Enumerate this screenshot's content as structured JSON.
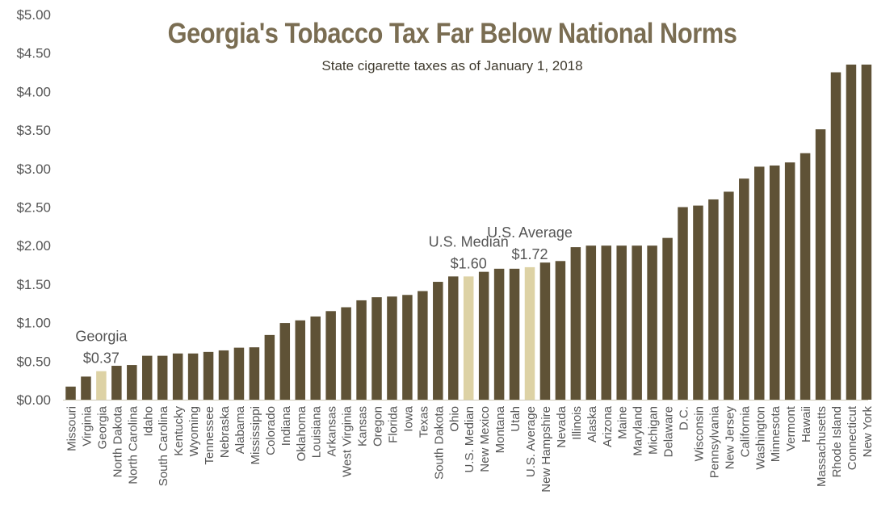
{
  "chart_data": {
    "type": "bar",
    "title": "Georgia's Tobacco Tax Far Below National Norms",
    "subtitle": "State cigarette taxes as of January 1, 2018",
    "xlabel": "",
    "ylabel": "",
    "ylim": [
      0,
      5
    ],
    "y_ticks": [
      "$0.00",
      "$0.50",
      "$1.00",
      "$1.50",
      "$2.00",
      "$2.50",
      "$3.00",
      "$3.50",
      "$4.00",
      "$4.50",
      "$5.00"
    ],
    "grid": false,
    "legend": "none",
    "colors": {
      "bar": "#5f5236",
      "highlight": "#ddd2a5",
      "title": "#7a6d52",
      "axis_text": "#555555",
      "annotation": "#555555"
    },
    "categories": [
      "Missouri",
      "Virginia",
      "Georgia",
      "North Dakota",
      "North Carolina",
      "Idaho",
      "South Carolina",
      "Kentucky",
      "Wyoming",
      "Tennessee",
      "Nebraska",
      "Alabama",
      "Mississippi",
      "Colorado",
      "Indiana",
      "Oklahoma",
      "Louisiana",
      "Arkansas",
      "West Virginia",
      "Kansas",
      "Oregon",
      "Florida",
      "Iowa",
      "Texas",
      "South Dakota",
      "Ohio",
      "U.S. Median",
      "New Mexico",
      "Montana",
      "Utah",
      "U.S. Average",
      "New Hampshire",
      "Nevada",
      "Illinois",
      "Alaska",
      "Arizona",
      "Maine",
      "Maryland",
      "Michigan",
      "Delaware",
      "D.C.",
      "Wisconsin",
      "Pennsylvania",
      "New Jersey",
      "California",
      "Washington",
      "Minnesota",
      "Vermont",
      "Hawaii",
      "Massachusetts",
      "Rhode Island",
      "Connecticut",
      "New York"
    ],
    "values": [
      0.17,
      0.3,
      0.37,
      0.44,
      0.45,
      0.57,
      0.57,
      0.6,
      0.6,
      0.62,
      0.64,
      0.675,
      0.68,
      0.84,
      0.995,
      1.03,
      1.08,
      1.15,
      1.2,
      1.29,
      1.33,
      1.339,
      1.36,
      1.41,
      1.53,
      1.6,
      1.6,
      1.66,
      1.7,
      1.7,
      1.72,
      1.78,
      1.8,
      1.98,
      2.0,
      2.0,
      2.0,
      2.0,
      2.0,
      2.1,
      2.5,
      2.52,
      2.6,
      2.7,
      2.87,
      3.025,
      3.04,
      3.08,
      3.2,
      3.51,
      4.25,
      4.35,
      4.35
    ],
    "highlighted": [
      "Georgia",
      "U.S. Median",
      "U.S. Average"
    ],
    "annotations": [
      {
        "category": "Georgia",
        "lines": [
          "Georgia",
          "$0.37"
        ]
      },
      {
        "category": "U.S. Median",
        "lines": [
          "U.S. Median",
          "$1.60"
        ]
      },
      {
        "category": "U.S. Average",
        "lines": [
          "U.S. Average",
          "$1.72"
        ]
      }
    ]
  }
}
